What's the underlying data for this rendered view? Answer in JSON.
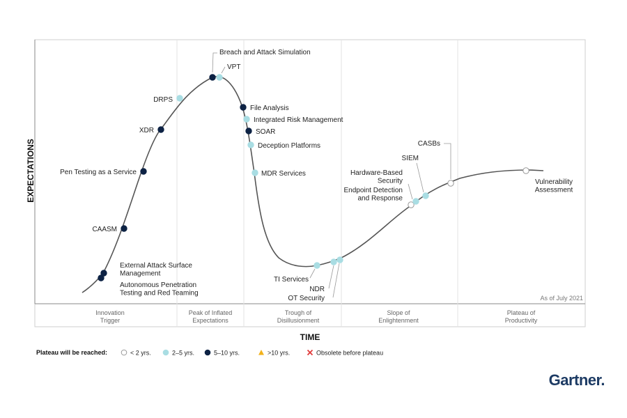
{
  "chart_data": {
    "type": "scatter",
    "subtype": "hype-cycle",
    "title": "",
    "xlabel": "TIME",
    "ylabel": "EXPECTATIONS",
    "as_of": "As of July 2021",
    "grid": false,
    "legend_placement": "bottom-left",
    "phases": [
      {
        "label": [
          "Innovation",
          "Trigger"
        ]
      },
      {
        "label": [
          "Peak of Inflated",
          "Expectations"
        ]
      },
      {
        "label": [
          "Trough of",
          "Disillusionment"
        ]
      },
      {
        "label": [
          "Slope of",
          "Enlightenment"
        ]
      },
      {
        "label": [
          "Plateau of",
          "Productivity"
        ]
      }
    ],
    "legend": {
      "title": "Plateau will be reached:",
      "entries": [
        {
          "key": "lt2",
          "label": "< 2 yrs.",
          "color": "#ffffff",
          "stroke": "#999999",
          "shape": "circle"
        },
        {
          "key": "2to5",
          "label": "2–5 yrs.",
          "color": "#a9dde3",
          "stroke": "#a9dde3",
          "shape": "circle"
        },
        {
          "key": "5to10",
          "label": "5–10 yrs.",
          "color": "#0d2244",
          "stroke": "#0d2244",
          "shape": "circle"
        },
        {
          "key": "gt10",
          "label": ">10 yrs.",
          "color": "#f2b21b",
          "stroke": "#f2b21b",
          "shape": "triangle"
        },
        {
          "key": "obsolete",
          "label": "Obsolete before plateau",
          "color": "#e03a3a",
          "stroke": "#e03a3a",
          "shape": "x"
        }
      ]
    },
    "points": [
      {
        "name": "Autonomous Penetration Testing and Red Teaming",
        "label": [
          "Autonomous Penetration",
          "Testing and Red Teaming"
        ],
        "category": "5to10"
      },
      {
        "name": "External Attack Surface Management",
        "label": [
          "External Attack Surface",
          "Management"
        ],
        "category": "5to10"
      },
      {
        "name": "CAASM",
        "label": [
          "CAASM"
        ],
        "category": "5to10"
      },
      {
        "name": "Pen Testing as a Service",
        "label": [
          "Pen Testing as a Service"
        ],
        "category": "5to10"
      },
      {
        "name": "XDR",
        "label": [
          "XDR"
        ],
        "category": "5to10"
      },
      {
        "name": "DRPS",
        "label": [
          "DRPS"
        ],
        "category": "2to5"
      },
      {
        "name": "Breach and Attack Simulation",
        "label": [
          "Breach and Attack Simulation"
        ],
        "category": "5to10"
      },
      {
        "name": "VPT",
        "label": [
          "VPT"
        ],
        "category": "2to5"
      },
      {
        "name": "File Analysis",
        "label": [
          "File Analysis"
        ],
        "category": "5to10"
      },
      {
        "name": "Integrated Risk Management",
        "label": [
          "Integrated Risk Management"
        ],
        "category": "2to5"
      },
      {
        "name": "SOAR",
        "label": [
          "SOAR"
        ],
        "category": "5to10"
      },
      {
        "name": "Deception Platforms",
        "label": [
          "Deception Platforms"
        ],
        "category": "2to5"
      },
      {
        "name": "MDR Services",
        "label": [
          "MDR Services"
        ],
        "category": "2to5"
      },
      {
        "name": "TI Services",
        "label": [
          "TI Services"
        ],
        "category": "2to5"
      },
      {
        "name": "NDR",
        "label": [
          "NDR"
        ],
        "category": "2to5"
      },
      {
        "name": "OT Security",
        "label": [
          "OT Security"
        ],
        "category": "2to5"
      },
      {
        "name": "Endpoint Detection and Response",
        "label": [
          "Endpoint Detection",
          "and Response"
        ],
        "category": "lt2"
      },
      {
        "name": "Hardware-Based Security",
        "label": [
          "Hardware-Based",
          "Security"
        ],
        "category": "2to5"
      },
      {
        "name": "SIEM",
        "label": [
          "SIEM"
        ],
        "category": "2to5"
      },
      {
        "name": "CASBs",
        "label": [
          "CASBs"
        ],
        "category": "lt2"
      },
      {
        "name": "Vulnerability Assessment",
        "label": [
          "Vulnerability",
          "Assessment"
        ],
        "category": "lt2"
      }
    ]
  },
  "brand": "Gartner."
}
